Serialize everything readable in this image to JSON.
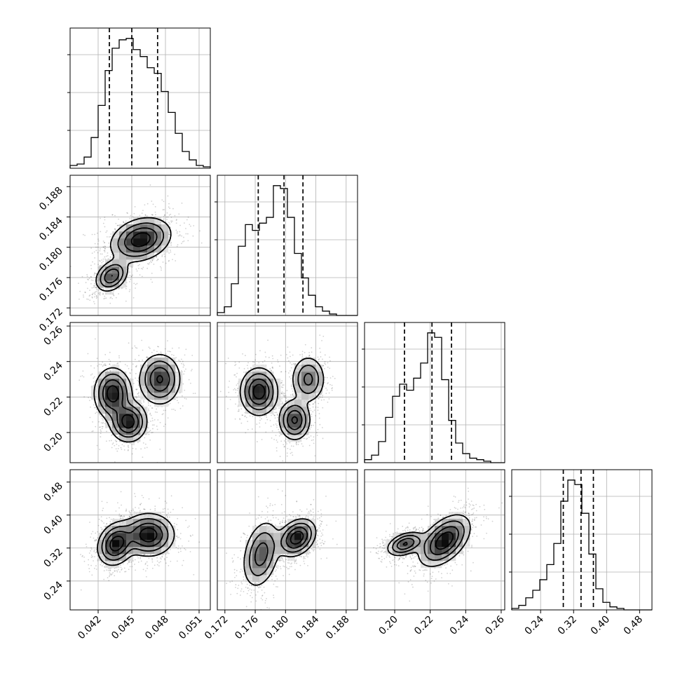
{
  "chart_data": {
    "type": "corner",
    "grid": true,
    "parameters": [
      {
        "range": [
          0.0395,
          0.052
        ],
        "ticks": [
          "0.042",
          "0.045",
          "0.048",
          "0.051"
        ],
        "tick_values": [
          0.042,
          0.045,
          0.048,
          0.051
        ]
      },
      {
        "range": [
          0.171,
          0.1895
        ],
        "ticks": [
          "0.172",
          "0.176",
          "0.180",
          "0.184",
          "0.188"
        ],
        "tick_values": [
          0.172,
          0.176,
          0.18,
          0.184,
          0.188
        ]
      },
      {
        "range": [
          0.183,
          0.262
        ],
        "ticks": [
          "0.20",
          "0.22",
          "0.24",
          "0.26"
        ],
        "tick_values": [
          0.2,
          0.22,
          0.24,
          0.26
        ]
      },
      {
        "range": [
          0.17,
          0.51
        ],
        "ticks": [
          "0.24",
          "0.32",
          "0.40",
          "0.48"
        ],
        "tick_values": [
          0.24,
          0.32,
          0.4,
          0.48
        ]
      }
    ],
    "histograms": [
      {
        "counts": [
          2,
          3,
          8,
          22,
          45,
          70,
          86,
          92,
          93,
          85,
          80,
          72,
          68,
          55,
          40,
          25,
          12,
          6,
          2,
          1
        ],
        "quantiles": [
          0.043,
          0.045,
          0.0473
        ]
      },
      {
        "counts": [
          2,
          6,
          22,
          48,
          63,
          59,
          64,
          68,
          90,
          88,
          68,
          43,
          26,
          14,
          6,
          3,
          1,
          0,
          0,
          0
        ],
        "quantiles": [
          0.1764,
          0.1798,
          0.1823
        ]
      },
      {
        "counts": [
          2,
          5,
          14,
          30,
          44,
          52,
          48,
          56,
          66,
          86,
          83,
          55,
          28,
          13,
          6,
          3,
          2,
          1,
          0,
          0
        ],
        "quantiles": [
          0.2055,
          0.221,
          0.232
        ]
      },
      {
        "counts": [
          1,
          3,
          8,
          13,
          20,
          30,
          44,
          72,
          86,
          83,
          64,
          37,
          14,
          5,
          2,
          1,
          0,
          0,
          0,
          0
        ],
        "quantiles": [
          0.295,
          0.338,
          0.368
        ]
      }
    ],
    "joint_modes": {
      "1-0": [
        {
          "x": 0.0432,
          "y": 0.1762,
          "sx": 0.0007,
          "sy": 0.001,
          "w": 0.45,
          "r": 0.3
        },
        {
          "x": 0.0458,
          "y": 0.181,
          "sx": 0.0013,
          "sy": 0.0014,
          "w": 0.55,
          "r": 0.25
        }
      ],
      "2-0": [
        {
          "x": 0.0433,
          "y": 0.222,
          "sx": 0.0008,
          "sy": 0.007,
          "w": 0.35,
          "r": 0.0
        },
        {
          "x": 0.0447,
          "y": 0.206,
          "sx": 0.0008,
          "sy": 0.0055,
          "w": 0.35,
          "r": 0.0
        },
        {
          "x": 0.0475,
          "y": 0.23,
          "sx": 0.0009,
          "sy": 0.007,
          "w": 0.3,
          "r": 0.0
        }
      ],
      "2-1": [
        {
          "x": 0.1765,
          "y": 0.223,
          "sx": 0.0012,
          "sy": 0.0065,
          "w": 0.4,
          "r": 0.0
        },
        {
          "x": 0.1812,
          "y": 0.207,
          "sx": 0.001,
          "sy": 0.0055,
          "w": 0.35,
          "r": 0.0
        },
        {
          "x": 0.183,
          "y": 0.23,
          "sx": 0.0011,
          "sy": 0.0065,
          "w": 0.25,
          "r": 0.0
        }
      ],
      "3-0": [
        {
          "x": 0.0436,
          "y": 0.33,
          "sx": 0.0008,
          "sy": 0.025,
          "w": 0.5,
          "r": 0.2
        },
        {
          "x": 0.0465,
          "y": 0.352,
          "sx": 0.0011,
          "sy": 0.025,
          "w": 0.5,
          "r": 0.0
        }
      ],
      "3-1": [
        {
          "x": 0.1768,
          "y": 0.305,
          "sx": 0.0012,
          "sy": 0.04,
          "w": 0.4,
          "r": 0.3
        },
        {
          "x": 0.1815,
          "y": 0.345,
          "sx": 0.0012,
          "sy": 0.022,
          "w": 0.6,
          "r": 0.3
        }
      ],
      "3-2": [
        {
          "x": 0.206,
          "y": 0.33,
          "sx": 0.005,
          "sy": 0.014,
          "w": 0.45,
          "r": 0.4
        },
        {
          "x": 0.228,
          "y": 0.338,
          "sx": 0.007,
          "sy": 0.03,
          "w": 0.55,
          "r": 0.5
        }
      ]
    }
  },
  "colors": {
    "line": "#000000",
    "grid": "#b0b0b0",
    "background": "#ffffff"
  }
}
